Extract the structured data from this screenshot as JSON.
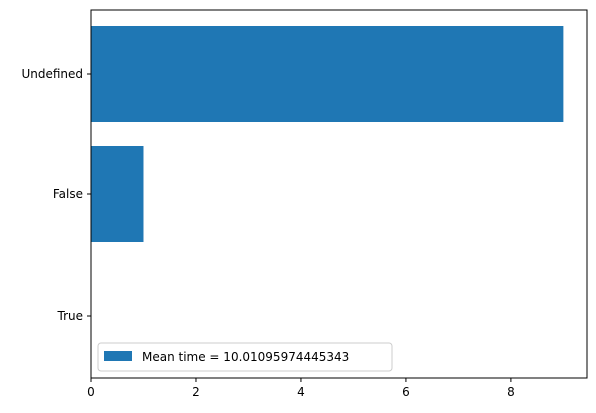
{
  "chart_data": {
    "type": "bar",
    "orientation": "horizontal",
    "categories": [
      "True",
      "False",
      "Undefined"
    ],
    "values": [
      0,
      1,
      9
    ],
    "xlim": [
      0,
      9.45
    ],
    "xticks": [
      0,
      2,
      4,
      6,
      8
    ],
    "xtick_labels": [
      "0",
      "2",
      "4",
      "6",
      "8"
    ],
    "legend": {
      "placement": "lower-left",
      "entries": [
        "Mean time = 10.01095974445343"
      ]
    },
    "grid": false,
    "bar_color": "#1f77b4"
  }
}
